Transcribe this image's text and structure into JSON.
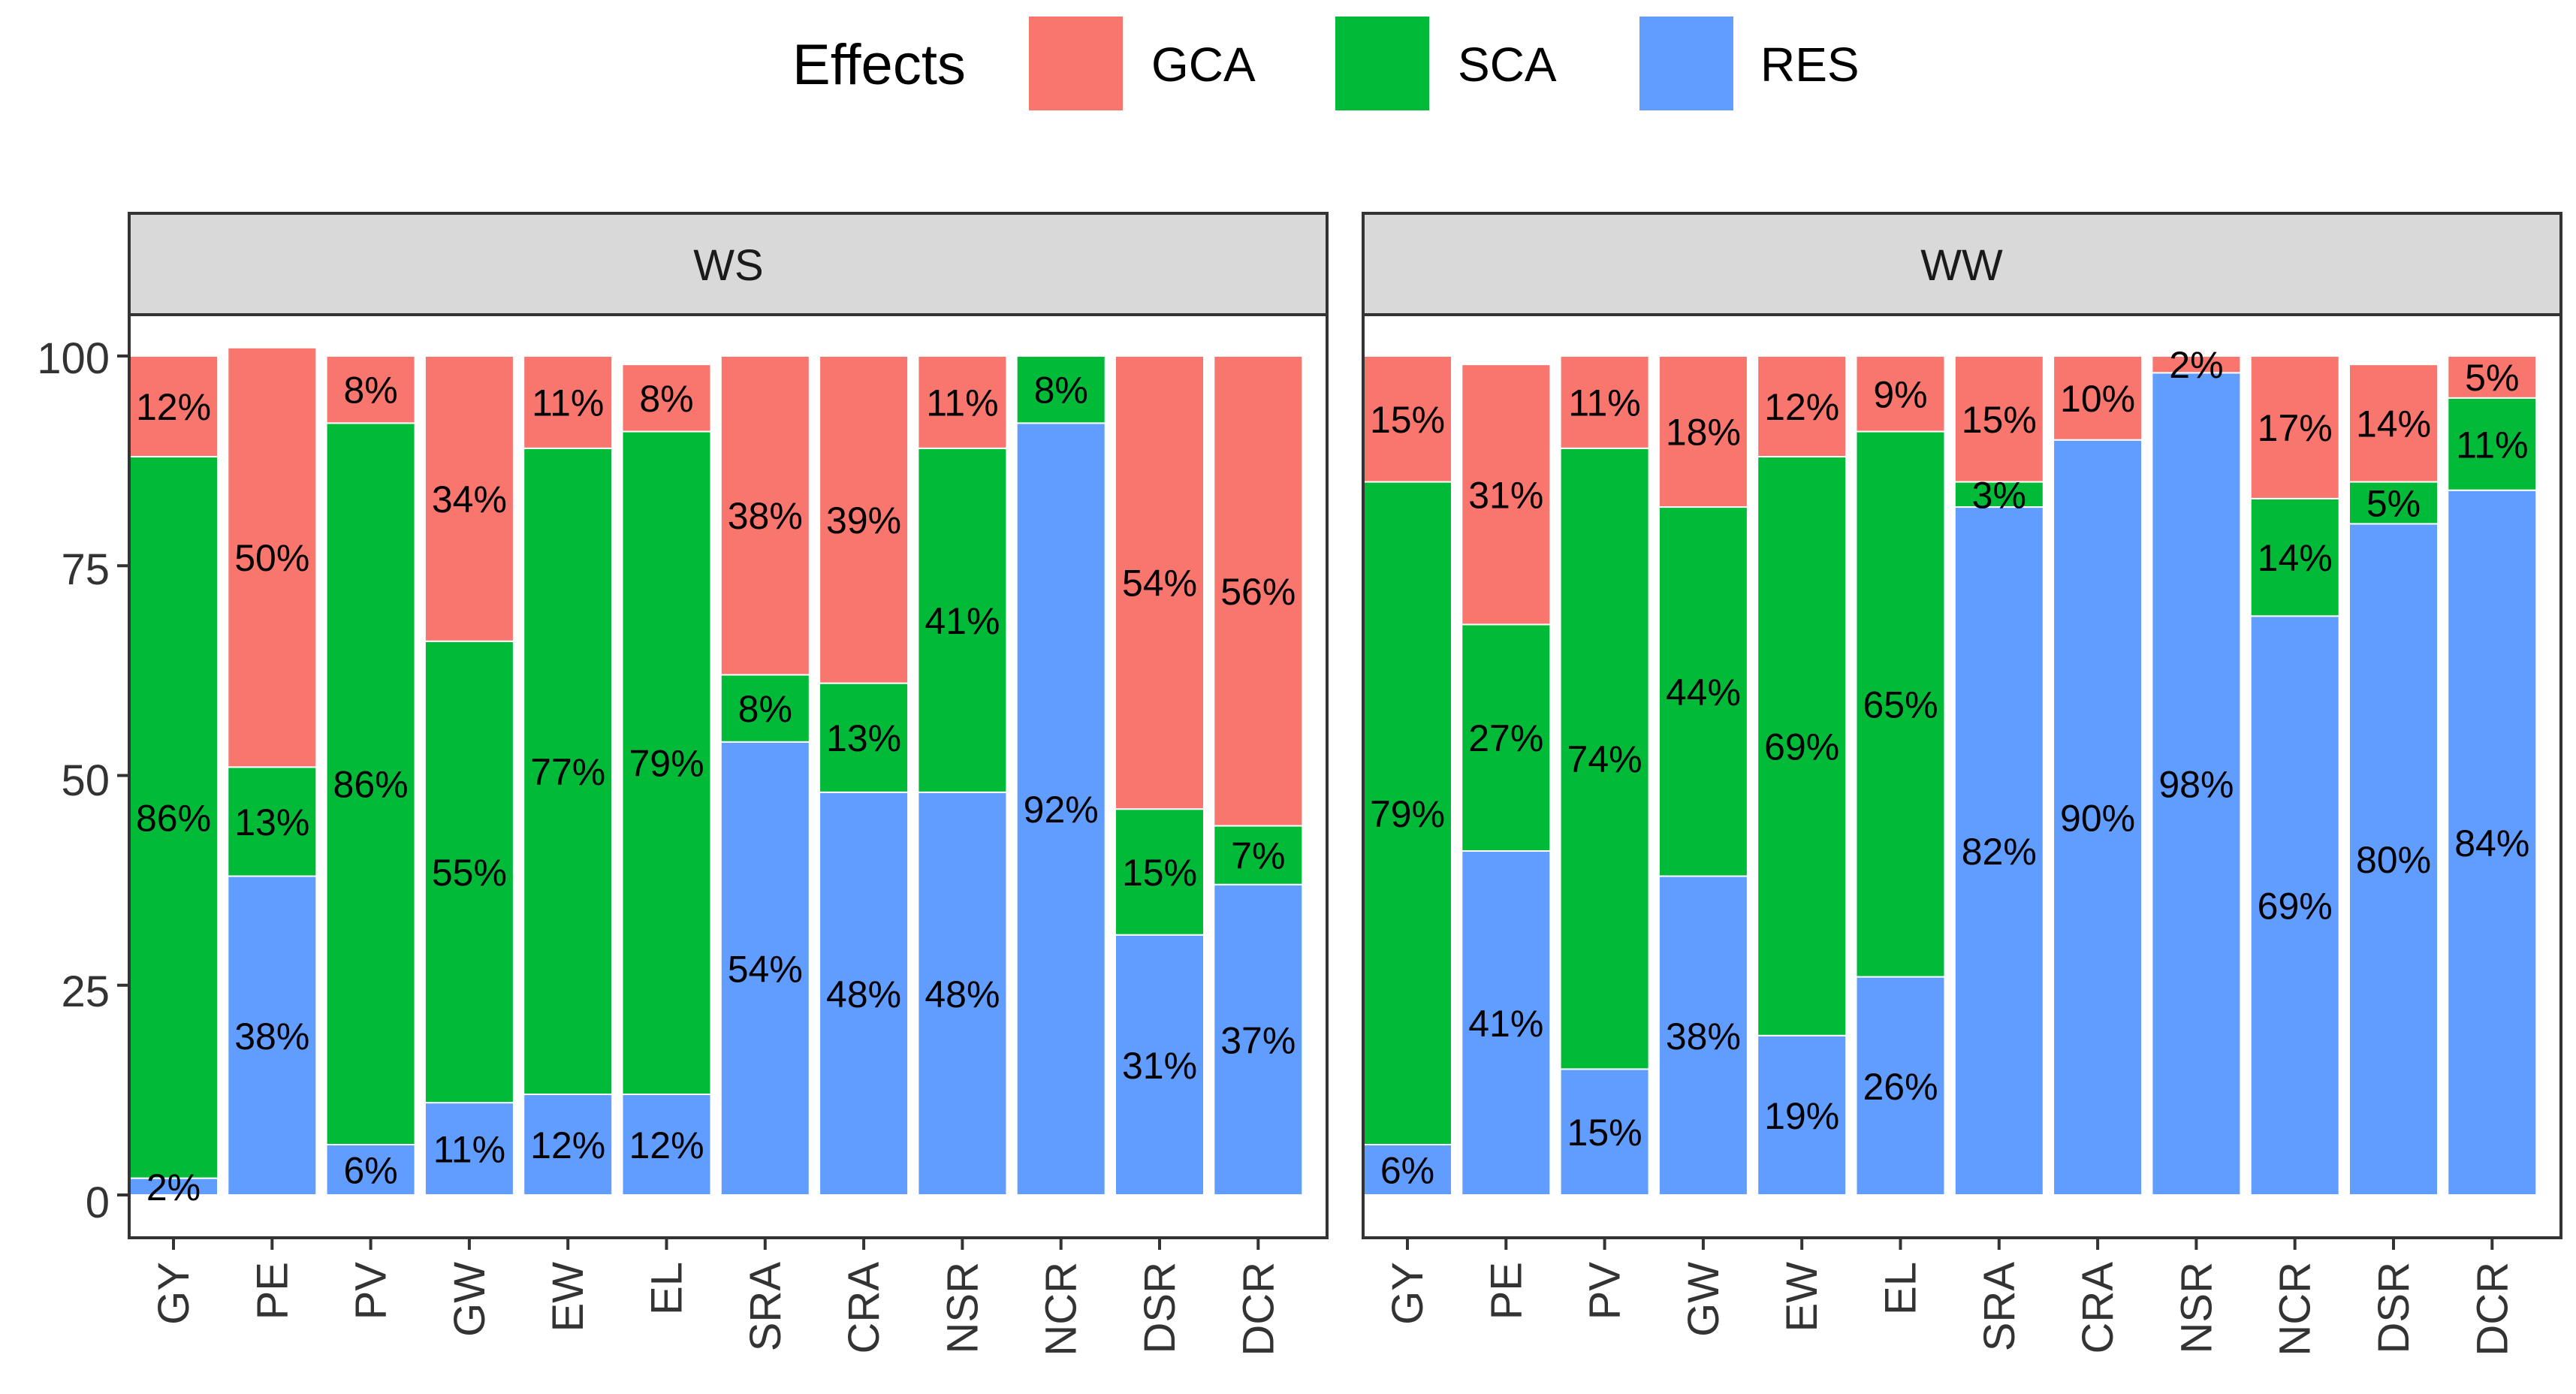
{
  "chart_data": {
    "type": "bar",
    "stacked": true,
    "legend": {
      "title": "Effects",
      "position": "top",
      "items": [
        {
          "name": "GCA",
          "color": "#F8766D"
        },
        {
          "name": "SCA",
          "color": "#00BA38"
        },
        {
          "name": "RES",
          "color": "#619CFF"
        }
      ]
    },
    "categories": [
      "GY",
      "PE",
      "PV",
      "GW",
      "EW",
      "EL",
      "SRA",
      "CRA",
      "NSR",
      "NCR",
      "DSR",
      "DCR"
    ],
    "yticks": [
      0,
      25,
      50,
      75,
      100
    ],
    "ylim": [
      0,
      100
    ],
    "xlabel": "",
    "ylabel": "",
    "panels": [
      {
        "title": "WS",
        "series": [
          {
            "name": "RES",
            "values": [
              2,
              38,
              6,
              11,
              12,
              12,
              54,
              48,
              48,
              92,
              31,
              37
            ],
            "labels": [
              "2%",
              "38%",
              "6%",
              "11%",
              "12%",
              "12%",
              "54%",
              "48%",
              "48%",
              "92%",
              "31%",
              "37%"
            ]
          },
          {
            "name": "SCA",
            "values": [
              86,
              13,
              86,
              55,
              77,
              79,
              8,
              13,
              41,
              8,
              15,
              7
            ],
            "labels": [
              "86%",
              "13%",
              "86%",
              "55%",
              "77%",
              "79%",
              "8%",
              "13%",
              "41%",
              "8%",
              "15%",
              "7%"
            ]
          },
          {
            "name": "GCA",
            "values": [
              12,
              50,
              8,
              34,
              11,
              8,
              38,
              39,
              11,
              0,
              54,
              56
            ],
            "labels": [
              "12%",
              "50%",
              "8%",
              "34%",
              "11%",
              "8%",
              "38%",
              "39%",
              "11%",
              "",
              "54%",
              "56%"
            ]
          }
        ]
      },
      {
        "title": "WW",
        "series": [
          {
            "name": "RES",
            "values": [
              6,
              41,
              15,
              38,
              19,
              26,
              82,
              90,
              98,
              69,
              80,
              84
            ],
            "labels": [
              "6%",
              "41%",
              "15%",
              "38%",
              "19%",
              "26%",
              "82%",
              "90%",
              "98%",
              "69%",
              "80%",
              "84%"
            ]
          },
          {
            "name": "SCA",
            "values": [
              79,
              27,
              74,
              44,
              69,
              65,
              3,
              0,
              0,
              14,
              5,
              11
            ],
            "labels": [
              "79%",
              "27%",
              "74%",
              "44%",
              "69%",
              "65%",
              "3%",
              "",
              "",
              "14%",
              "5%",
              "11%"
            ]
          },
          {
            "name": "GCA",
            "values": [
              15,
              31,
              11,
              18,
              12,
              9,
              15,
              10,
              2,
              17,
              14,
              5
            ],
            "labels": [
              "15%",
              "31%",
              "11%",
              "18%",
              "12%",
              "9%",
              "15%",
              "10%",
              "2%",
              "17%",
              "14%",
              "5%"
            ]
          }
        ]
      }
    ]
  }
}
